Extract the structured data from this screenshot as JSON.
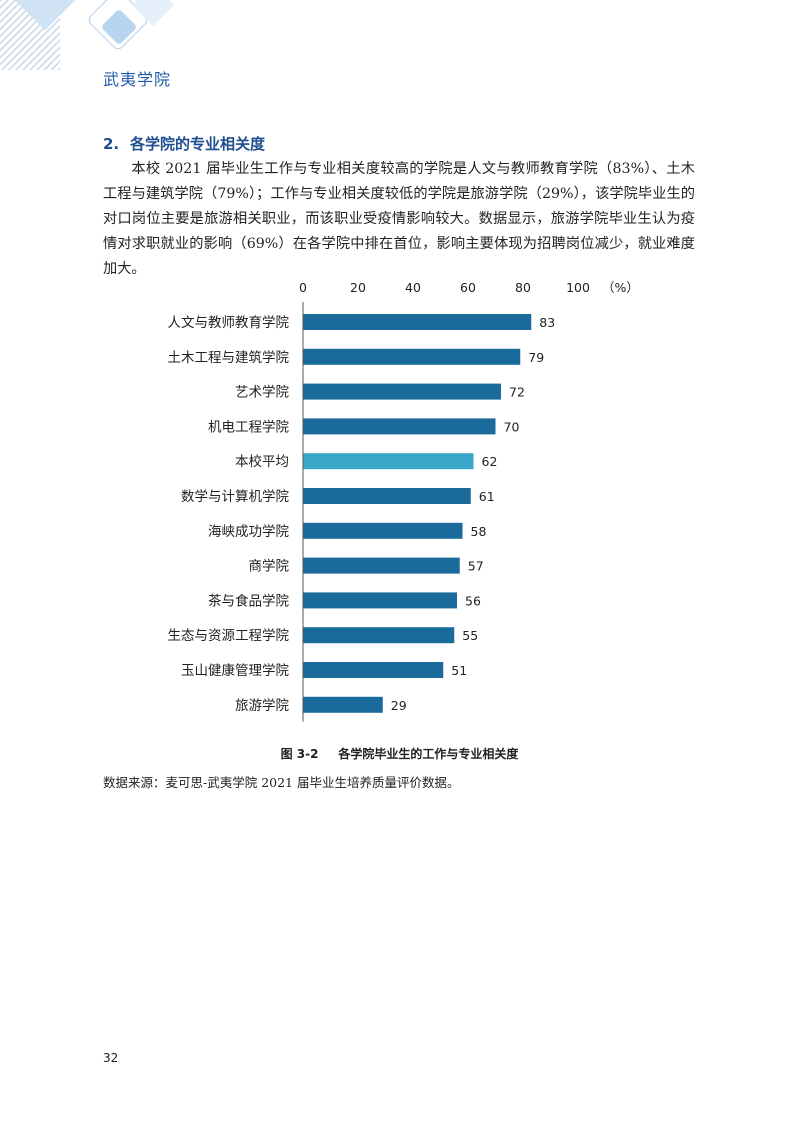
{
  "header": {
    "school_name": "武夷学院"
  },
  "section": {
    "number": "2.",
    "title": "各学院的专业相关度",
    "paragraph": "本校 2021 届毕业生工作与专业相关度较高的学院是人文与教师教育学院（83%）、土木工程与建筑学院（79%）；工作与专业相关度较低的学院是旅游学院（29%），该学院毕业生的对口岗位主要是旅游相关职业，而该职业受疫情影响较大。数据显示，旅游学院毕业生认为疫情对求职就业的影响（69%）在各学院中排在首位，影响主要体现为招聘岗位减少，就业难度加大。"
  },
  "chart_data": {
    "type": "bar",
    "orientation": "horizontal",
    "unit_label": "（%）",
    "xlim": [
      0,
      100
    ],
    "x_ticks": [
      "0",
      "20",
      "40",
      "60",
      "80",
      "100"
    ],
    "categories": [
      "人文与教师教育学院",
      "土木工程与建筑学院",
      "艺术学院",
      "机电工程学院",
      "本校平均",
      "数学与计算机学院",
      "海峡成功学院",
      "商学院",
      "茶与食品学院",
      "生态与资源工程学院",
      "玉山健康管理学院",
      "旅游学院"
    ],
    "values": [
      83,
      79,
      72,
      70,
      62,
      61,
      58,
      57,
      56,
      55,
      51,
      29
    ],
    "bar_color": "#1b6a9c",
    "highlight_color": "#3aa6c9",
    "highlight_category": "本校平均",
    "legend": "none",
    "grid": false
  },
  "figure": {
    "number": "图 3-2",
    "caption": "各学院毕业生的工作与专业相关度"
  },
  "source_note": "数据来源：麦可思-武夷学院 2021 届毕业生培养质量评价数据。",
  "page_number": "32",
  "colors": {
    "accent": "#1f5aa6",
    "heading": "#1f4f8f",
    "decor_light": "#cfe3f5",
    "decor_mid": "#9fc7e8"
  }
}
